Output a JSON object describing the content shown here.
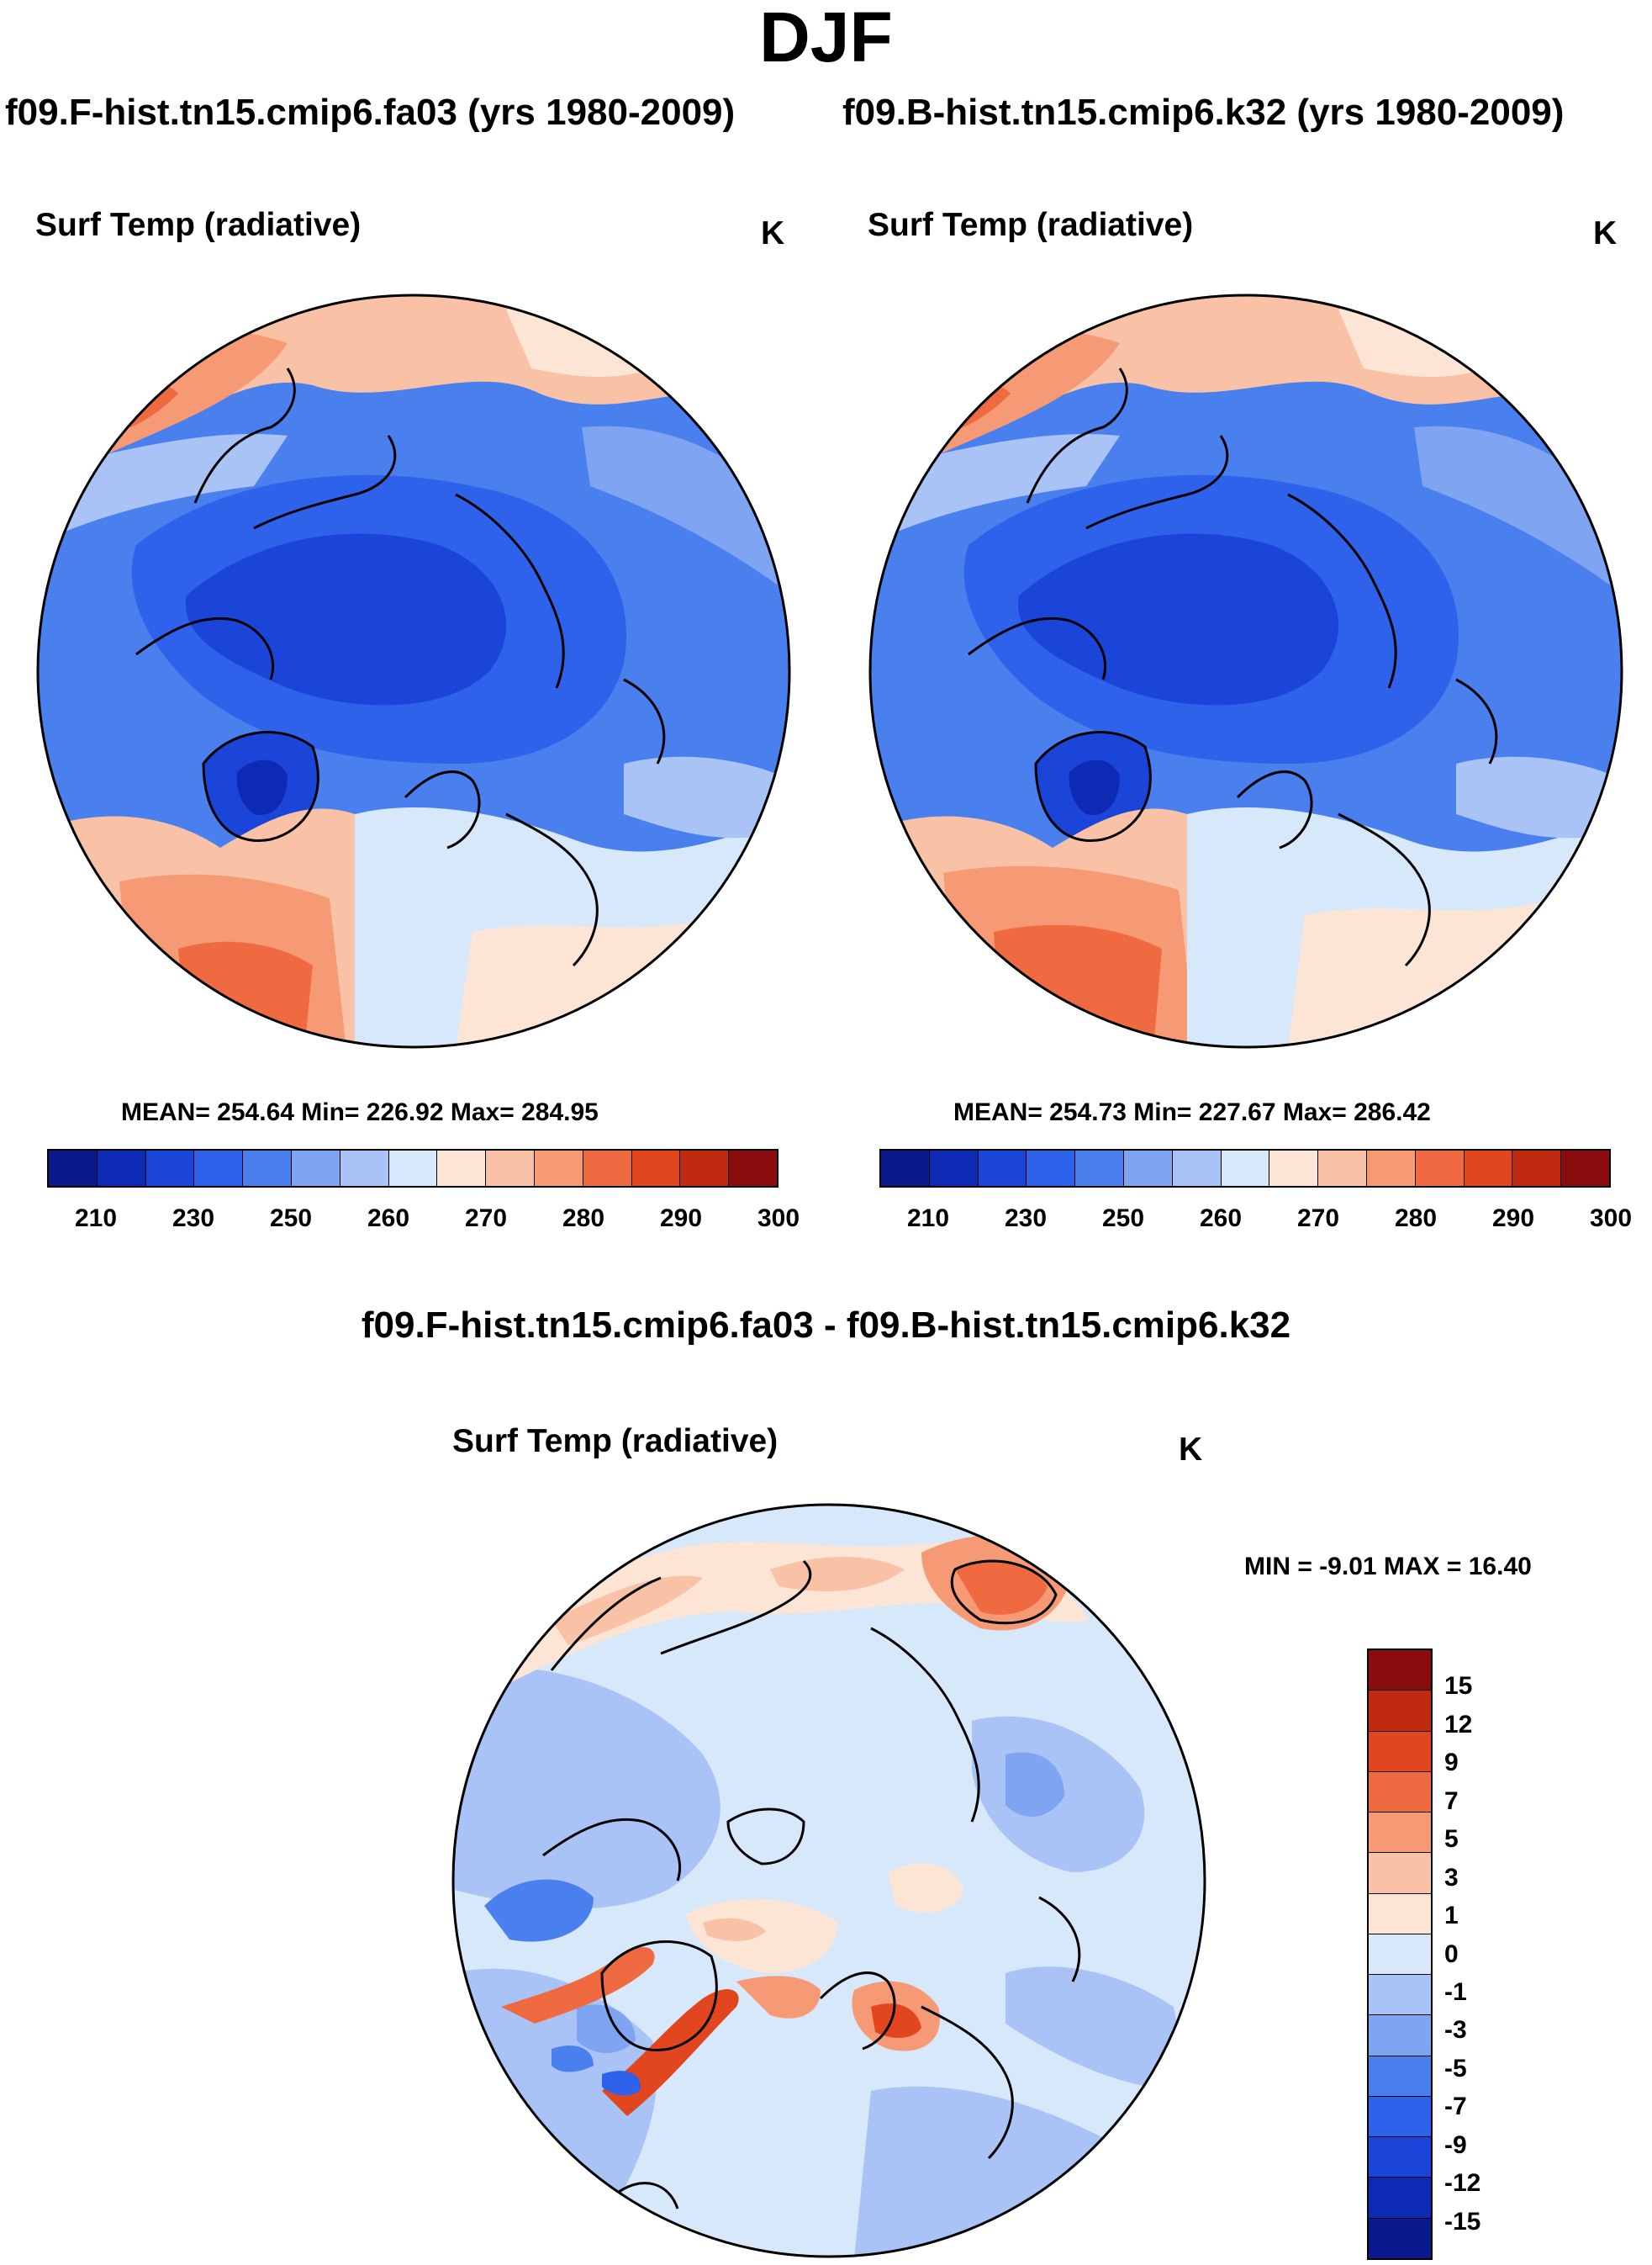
{
  "figure": {
    "season": "DJF",
    "left_caption": "f09.F-hist.tn15.cmip6.fa03 (yrs 1980-2009)",
    "right_caption": "f09.B-hist.tn15.cmip6.k32 (yrs 1980-2009)",
    "diff_caption": "f09.F-hist.tn15.cmip6.fa03 - f09.B-hist.tn15.cmip6.k32"
  },
  "panels": {
    "left": {
      "title": "Surf Temp (radiative)",
      "unit": "K",
      "stats": "MEAN= 254.64  Min= 226.92  Max= 284.95"
    },
    "right": {
      "title": "Surf Temp (radiative)",
      "unit": "K",
      "stats": "MEAN= 254.73  Min= 227.67  Max= 286.42"
    },
    "diff": {
      "title": "Surf Temp (radiative)",
      "unit": "K",
      "stats": "MIN =  -9.01 MAX =  16.40"
    }
  },
  "colorbars": {
    "absolute": {
      "colors": [
        "#0a1a8c",
        "#0e2ab4",
        "#1a45d8",
        "#2e62ea",
        "#4a7fee",
        "#7fa5f2",
        "#a9c3f6",
        "#d8e8fb",
        "#fde5d6",
        "#f9c2a6",
        "#f59a74",
        "#ef6a40",
        "#e2461f",
        "#bf2a10",
        "#8a0d0d"
      ],
      "tick_labels": [
        "210",
        "230",
        "250",
        "260",
        "270",
        "280",
        "290",
        "300"
      ]
    },
    "difference": {
      "colors": [
        "#8a0d0d",
        "#bf2a10",
        "#e2461f",
        "#ef6a40",
        "#f59a74",
        "#f9c2a6",
        "#fde5d6",
        "#d8e8fb",
        "#a9c3f6",
        "#7fa5f2",
        "#4a7fee",
        "#2e62ea",
        "#1a45d8",
        "#0e2ab4",
        "#0a1a8c"
      ],
      "tick_labels": [
        "15",
        "12",
        "9",
        "7",
        "5",
        "3",
        "1",
        "0",
        "-1",
        "-3",
        "-5",
        "-7",
        "-9",
        "-12",
        "-15"
      ]
    }
  }
}
